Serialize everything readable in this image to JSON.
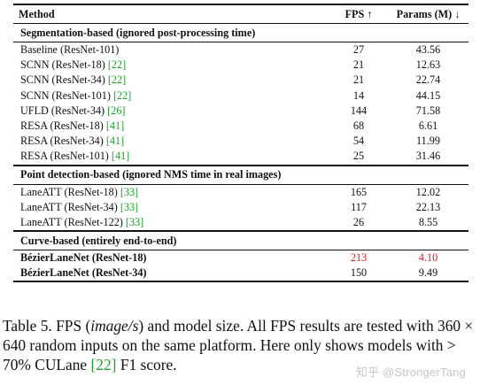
{
  "table": {
    "header": {
      "method": "Method",
      "fps": "FPS ↑",
      "params": "Params (M) ↓"
    },
    "groups": [
      {
        "title": "Segmentation-based (ignored post-processing time)",
        "rows": [
          {
            "method": "Baseline (ResNet-101)",
            "cite": "",
            "fps": "27",
            "params": "43.56"
          },
          {
            "method": "SCNN (ResNet-18) ",
            "cite": "[22]",
            "fps": "21",
            "params": "12.63"
          },
          {
            "method": "SCNN (ResNet-34) ",
            "cite": "[22]",
            "fps": "21",
            "params": "22.74"
          },
          {
            "method": "SCNN (ResNet-101) ",
            "cite": "[22]",
            "fps": "14",
            "params": "44.15"
          },
          {
            "method": "UFLD (ResNet-34) ",
            "cite": "[26]",
            "fps": "144",
            "params": "71.58"
          },
          {
            "method": "RESA (ResNet-18) ",
            "cite": "[41]",
            "fps": "68",
            "params": "6.61"
          },
          {
            "method": "RESA (ResNet-34) ",
            "cite": "[41]",
            "fps": "54",
            "params": "11.99"
          },
          {
            "method": "RESA (ResNet-101) ",
            "cite": "[41]",
            "fps": "25",
            "params": "31.46"
          }
        ]
      },
      {
        "title": "Point detection-based (ignored NMS time in real images)",
        "rows": [
          {
            "method": "LaneATT (ResNet-18) ",
            "cite": "[33]",
            "fps": "165",
            "params": "12.02"
          },
          {
            "method": "LaneATT (ResNet-34) ",
            "cite": "[33]",
            "fps": "117",
            "params": "22.13"
          },
          {
            "method": "LaneATT (ResNet-122) ",
            "cite": "[33]",
            "fps": "26",
            "params": "8.55"
          }
        ]
      },
      {
        "title": "Curve-based (entirely end-to-end)",
        "rows": [
          {
            "method": "BézierLaneNet (ResNet-18)",
            "cite": "",
            "fps": "213",
            "params": "4.10"
          },
          {
            "method": "BézierLaneNet (ResNet-34)",
            "cite": "",
            "fps": "150",
            "params": "9.49"
          }
        ]
      }
    ]
  },
  "caption": {
    "label": "Table 5. FPS (",
    "italic": "image/s",
    "rest1": ") and model size. All FPS results are tested with 360 × 640 random inputs on the same platform. Here only shows models with > 70% CULane ",
    "cite": "[22]",
    "rest2": " F1 score."
  },
  "watermark": "知乎 @StrongerTang",
  "colors": {
    "cite": "#1f9e2a",
    "best": "#e0191e"
  }
}
